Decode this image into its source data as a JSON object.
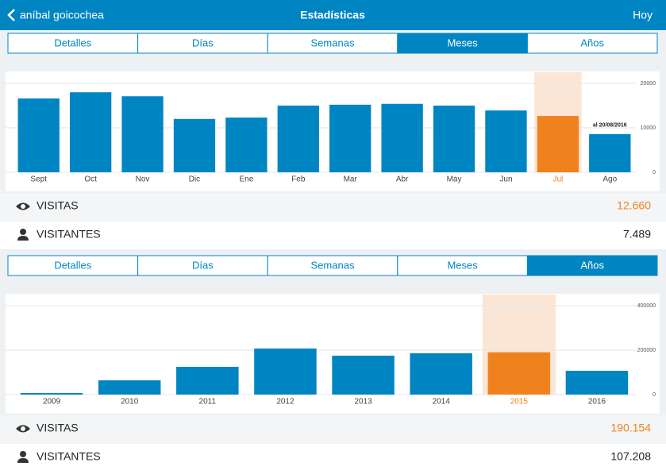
{
  "header": {
    "back": "aníbal goicochea",
    "title": "Estadísticas",
    "right": "Hoy"
  },
  "panels": [
    {
      "tabs": [
        "Detalles",
        "Días",
        "Semanas",
        "Meses",
        "Años"
      ],
      "selected_tab": 3,
      "chart": {
        "type": "bar",
        "categories": [
          "Sept",
          "Oct",
          "Nov",
          "Dic",
          "Ene",
          "Feb",
          "Mar",
          "Abr",
          "May",
          "Jun",
          "Jul",
          "Ago"
        ],
        "values": [
          16600,
          18000,
          17100,
          12000,
          12300,
          15000,
          15200,
          15400,
          15000,
          13900,
          12660,
          8600
        ],
        "ylim": [
          0,
          22500
        ],
        "yticks": [
          0,
          10000,
          20000
        ],
        "highlight": 10,
        "annotation": "al 20/08/2016",
        "color": "#0085c3",
        "highlight_color": "#f0821e",
        "grid": true
      },
      "stats": [
        {
          "label": "VISITAS",
          "value": "12.660"
        },
        {
          "label": "VISITANTES",
          "value": "7.489"
        }
      ]
    },
    {
      "tabs": [
        "Detalles",
        "Días",
        "Semanas",
        "Meses",
        "Años"
      ],
      "selected_tab": 4,
      "chart": {
        "type": "bar",
        "categories": [
          "2009",
          "2010",
          "2011",
          "2012",
          "2013",
          "2014",
          "2015",
          "2016"
        ],
        "values": [
          7000,
          64000,
          125000,
          207000,
          175000,
          186000,
          190154,
          107000
        ],
        "ylim": [
          0,
          450000
        ],
        "yticks": [
          0,
          200000,
          400000
        ],
        "highlight": 6,
        "color": "#0085c3",
        "highlight_color": "#f0821e",
        "grid": true
      },
      "stats": [
        {
          "label": "VISITAS",
          "value": "190.154"
        },
        {
          "label": "VISITANTES",
          "value": "107.208"
        }
      ]
    }
  ]
}
